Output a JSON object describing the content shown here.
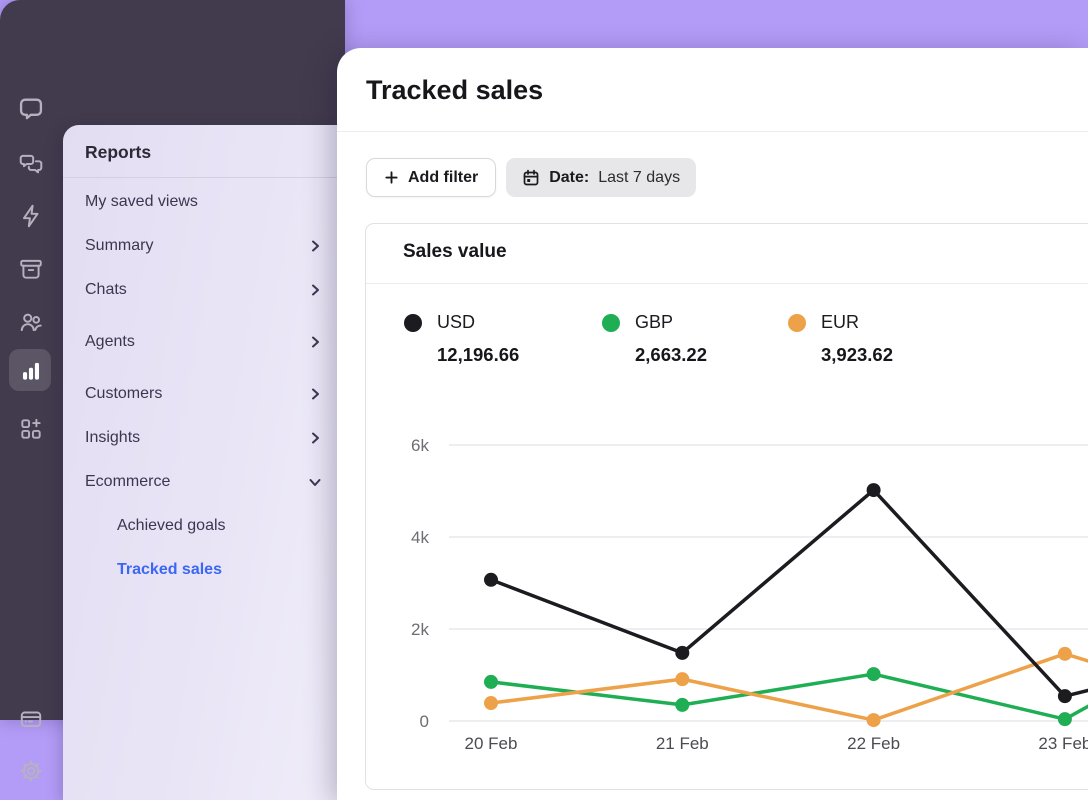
{
  "app": {
    "brand_bg": "#b39cf7",
    "sidebar_bg": "#423b4d"
  },
  "sidebar": {
    "icons": [
      {
        "name": "livechat-logo"
      },
      {
        "name": "chats-icon"
      },
      {
        "name": "automation-icon"
      },
      {
        "name": "archives-icon"
      },
      {
        "name": "team-icon"
      },
      {
        "name": "reports-icon",
        "active": true
      },
      {
        "name": "apps-icon"
      }
    ],
    "bottom_icons": [
      {
        "name": "billing-icon"
      },
      {
        "name": "settings-icon"
      }
    ]
  },
  "nav": {
    "title": "Reports",
    "active_color": "#3c67f5",
    "items": [
      {
        "label": "My saved views"
      },
      {
        "label": "Summary",
        "chevron": "right"
      },
      {
        "label": "Chats",
        "chevron": "right"
      },
      {
        "label": "Agents",
        "chevron": "right"
      },
      {
        "label": "Customers",
        "chevron": "right"
      },
      {
        "label": "Insights",
        "chevron": "right"
      },
      {
        "label": "Ecommerce",
        "chevron": "down"
      },
      {
        "label": "Achieved goals",
        "indent": true
      },
      {
        "label": "Tracked sales",
        "indent": true,
        "active": true
      }
    ]
  },
  "main": {
    "title": "Tracked sales",
    "filters": {
      "add_filter_label": "Add filter",
      "date_label": "Date:",
      "date_value": "Last 7 days"
    },
    "card": {
      "title": "Sales value",
      "legend": [
        {
          "currency": "USD",
          "value": "12,196.66",
          "color": "#1c1b20"
        },
        {
          "currency": "GBP",
          "value": "2,663.22",
          "color": "#1fae53"
        },
        {
          "currency": "EUR",
          "value": "3,923.62",
          "color": "#eda24a"
        }
      ]
    }
  },
  "chart_data": {
    "type": "line",
    "title": "Sales value",
    "x": [
      "20 Feb",
      "21 Feb",
      "22 Feb",
      "23 Feb"
    ],
    "series": [
      {
        "name": "USD",
        "color": "#1c1b20",
        "values": [
          3070,
          1480,
          5020,
          540
        ],
        "edge_value": 670
      },
      {
        "name": "GBP",
        "color": "#1fae53",
        "values": [
          850,
          350,
          1020,
          40
        ],
        "edge_value": 330
      },
      {
        "name": "EUR",
        "color": "#eda24a",
        "values": [
          390,
          910,
          20,
          1460
        ],
        "edge_value": 1300
      }
    ],
    "y_ticks": [
      0,
      2000,
      4000,
      6000
    ],
    "y_tick_labels": [
      "0",
      "2k",
      "4k",
      "6k"
    ],
    "ylim": [
      0,
      6000
    ],
    "grid": "horizontal",
    "legend_position": "top",
    "note": "right edge clipped mid-interval after 23 Feb; edge_value = value at clip edge"
  }
}
